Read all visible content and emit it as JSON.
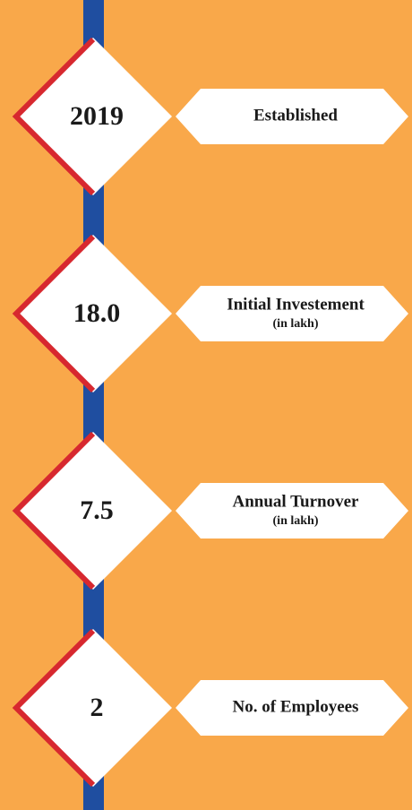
{
  "items": [
    {
      "value": "2019",
      "label": "Established"
    },
    {
      "value": "18.0",
      "label": "Initial Investement",
      "sublabel": "(in lakh)"
    },
    {
      "value": "7.5",
      "label": "Annual Turnover",
      "sublabel": "(in lakh)"
    },
    {
      "value": "2",
      "label": "No. of Employees"
    }
  ]
}
